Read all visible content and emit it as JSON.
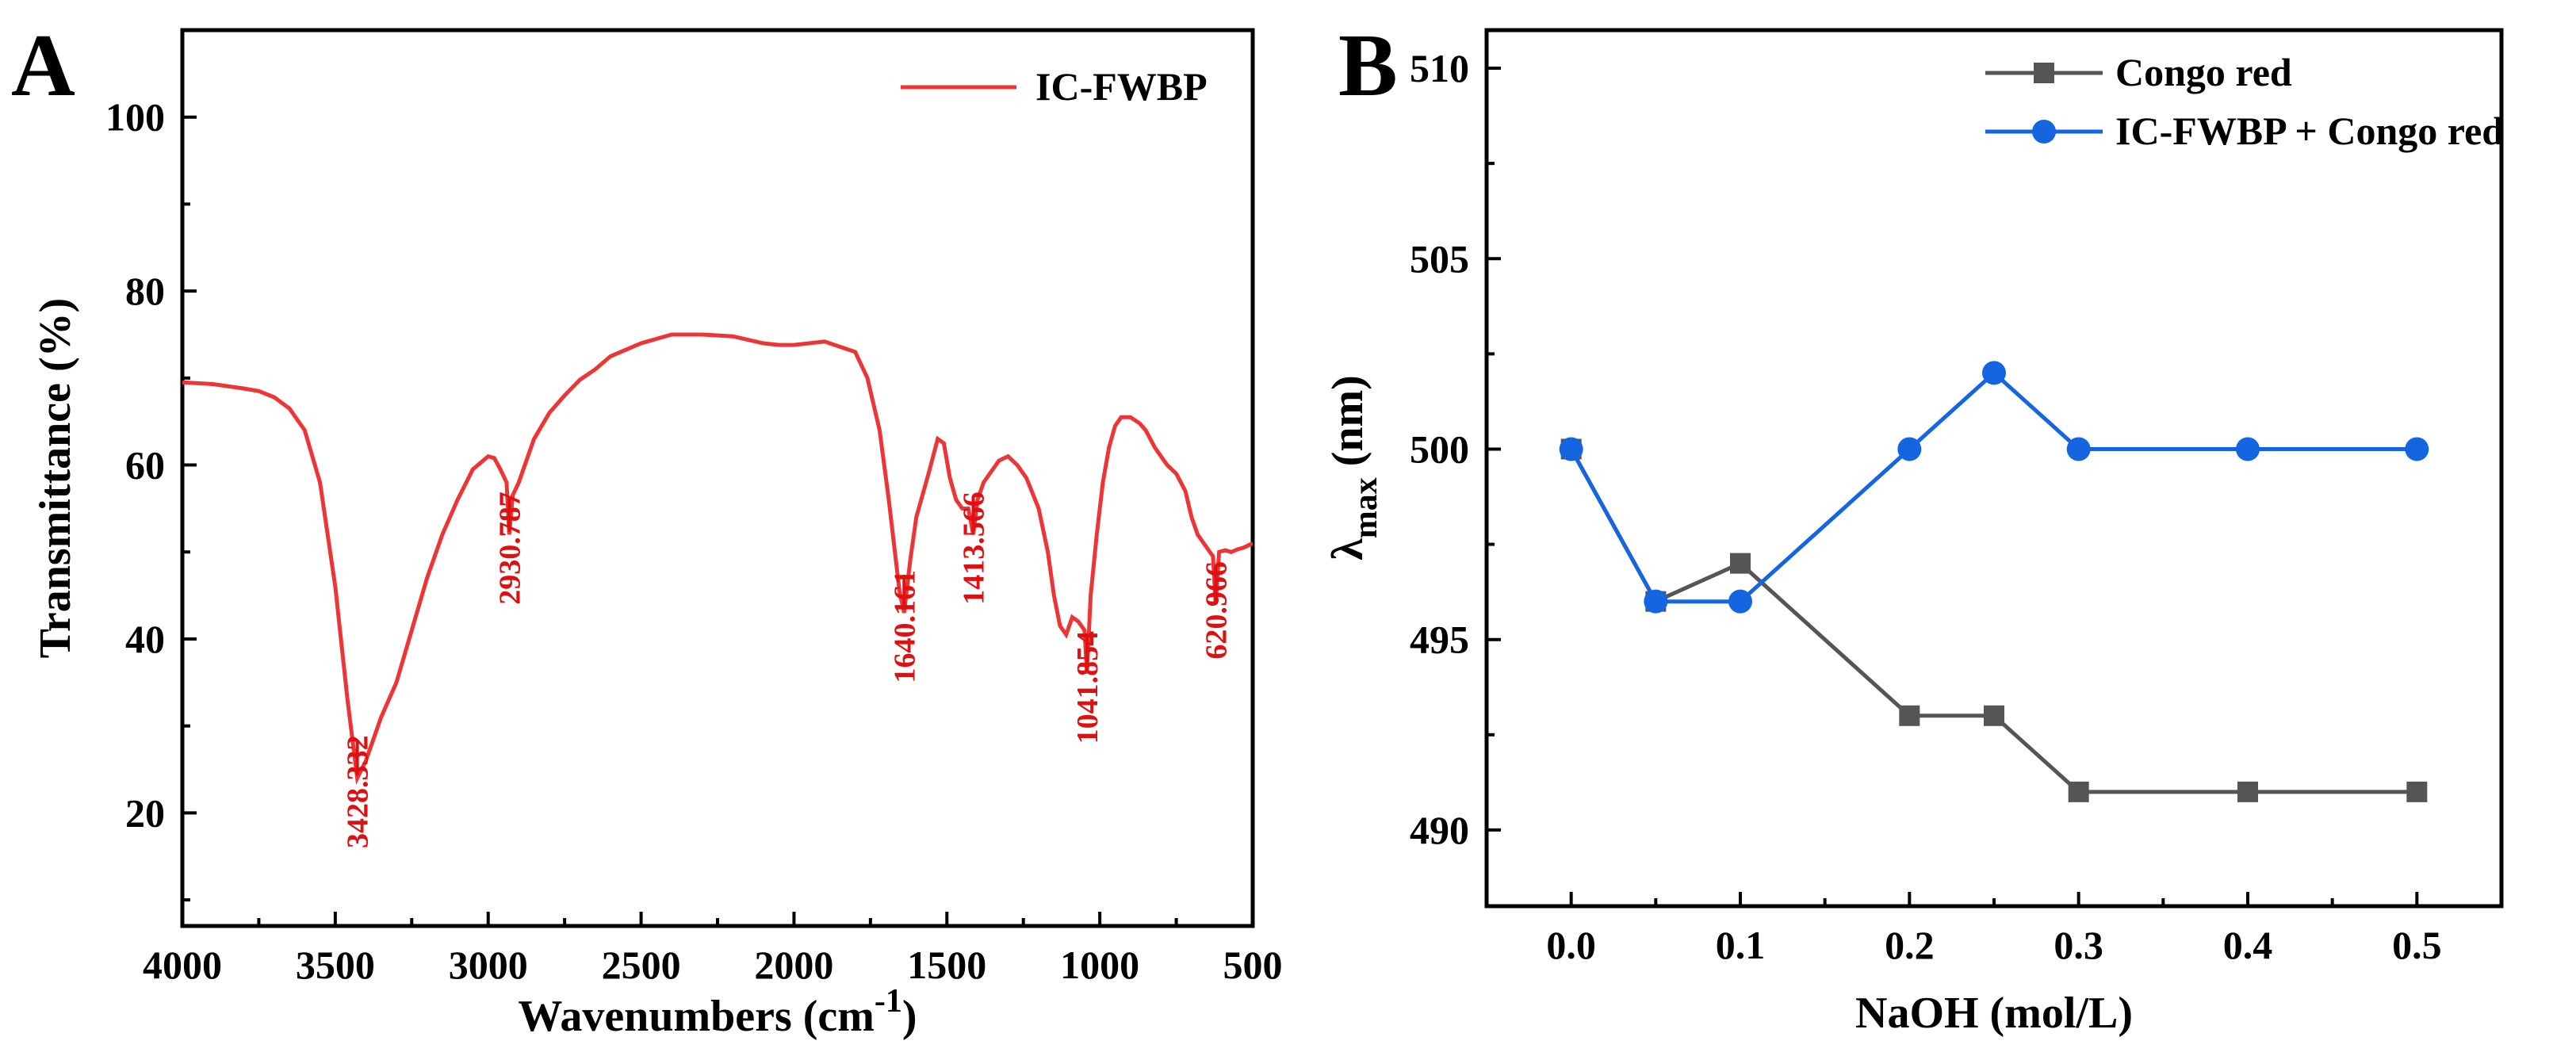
{
  "colors": {
    "ftir_line": "#ee3535",
    "peak_label": "#dd1111",
    "congo_red": "#555555",
    "ic_congo": "#1565e0",
    "axis": "#000000"
  },
  "chart_data": [
    {
      "type": "line",
      "panel_label": "A",
      "xlabel": "Wavenumbers (cm",
      "xlabel_sup": "-1",
      "xlabel_close": ")",
      "ylabel": "Transmittance (%)",
      "xlim": [
        4000,
        500
      ],
      "ylim": [
        7,
        110
      ],
      "x_ticks": [
        "4000",
        "3500",
        "3000",
        "2500",
        "2000",
        "1500",
        "1000",
        "500"
      ],
      "y_ticks": [
        "20",
        "40",
        "60",
        "80",
        "100"
      ],
      "legend": "IC-FWBP",
      "legend_position": "top-right",
      "series": [
        {
          "name": "IC-FWBP",
          "x": [
            4000,
            3900,
            3800,
            3750,
            3700,
            3650,
            3600,
            3550,
            3500,
            3460,
            3428,
            3400,
            3350,
            3300,
            3250,
            3200,
            3150,
            3100,
            3050,
            3000,
            2980,
            2960,
            2940,
            2931,
            2920,
            2900,
            2880,
            2850,
            2800,
            2750,
            2700,
            2650,
            2600,
            2500,
            2400,
            2300,
            2200,
            2100,
            2050,
            2000,
            1900,
            1800,
            1760,
            1720,
            1690,
            1670,
            1655,
            1640,
            1620,
            1600,
            1560,
            1530,
            1510,
            1490,
            1470,
            1450,
            1430,
            1414,
            1400,
            1380,
            1360,
            1330,
            1300,
            1270,
            1240,
            1200,
            1170,
            1150,
            1130,
            1110,
            1090,
            1070,
            1050,
            1042,
            1030,
            1010,
            990,
            970,
            950,
            930,
            900,
            870,
            850,
            820,
            800,
            780,
            750,
            720,
            700,
            680,
            660,
            640,
            630,
            621,
            610,
            590,
            570,
            550,
            530,
            500
          ],
          "y": [
            69.5,
            69.3,
            68.8,
            68.5,
            67.8,
            66.5,
            64,
            58,
            46,
            33,
            24,
            26,
            31,
            35,
            41,
            47,
            52,
            56,
            59.5,
            61,
            60.8,
            59.5,
            58,
            52,
            56.5,
            58,
            60,
            63,
            66,
            68,
            69.8,
            71,
            72.5,
            74,
            75,
            75,
            74.8,
            74,
            73.8,
            73.8,
            74.2,
            73,
            70,
            64,
            56,
            50,
            45.5,
            43,
            49,
            54,
            59,
            63,
            62.5,
            58.5,
            56,
            55,
            55,
            52,
            56,
            58,
            59,
            60.5,
            61,
            60,
            58.5,
            55,
            50,
            45,
            41.5,
            40.5,
            42.5,
            42,
            41,
            36,
            45,
            52,
            58,
            62,
            64.5,
            65.5,
            65.5,
            64.8,
            64,
            62,
            61,
            60,
            59,
            57,
            54,
            52,
            51,
            50,
            49.5,
            44,
            50,
            50.2,
            50,
            50.3,
            50.5,
            51
          ]
        }
      ],
      "annotations": [
        {
          "text": "3428.332",
          "x": 3428,
          "y": 24
        },
        {
          "text": "2930.787",
          "x": 2931,
          "y": 52
        },
        {
          "text": "1640.161",
          "x": 1640,
          "y": 43
        },
        {
          "text": "1413.566",
          "x": 1414,
          "y": 52
        },
        {
          "text": "1041.854",
          "x": 1042,
          "y": 36
        },
        {
          "text": "620.966",
          "x": 621,
          "y": 44
        }
      ]
    },
    {
      "type": "line",
      "panel_label": "B",
      "xlabel": "NaOH (mol/L)",
      "ylabel_main": "λ",
      "ylabel_sub": "max",
      "ylabel_unit": " (nm)",
      "xlim": [
        -0.05,
        0.55
      ],
      "ylim": [
        488,
        511
      ],
      "x_ticks": [
        "0.0",
        "0.1",
        "0.2",
        "0.3",
        "0.4",
        "0.5"
      ],
      "y_ticks": [
        "490",
        "495",
        "500",
        "505",
        "510"
      ],
      "legend_position": "top-right",
      "series": [
        {
          "name": "Congo red",
          "marker": "square",
          "x": [
            0.0,
            0.05,
            0.1,
            0.2,
            0.25,
            0.3,
            0.4,
            0.5
          ],
          "y": [
            500,
            496,
            497,
            493,
            493,
            491,
            491,
            491
          ]
        },
        {
          "name": "IC-FWBP + Congo red",
          "marker": "circle",
          "x": [
            0.0,
            0.05,
            0.1,
            0.2,
            0.25,
            0.3,
            0.4,
            0.5
          ],
          "y": [
            500,
            496,
            496,
            500,
            502,
            500,
            500,
            500
          ]
        }
      ]
    }
  ]
}
